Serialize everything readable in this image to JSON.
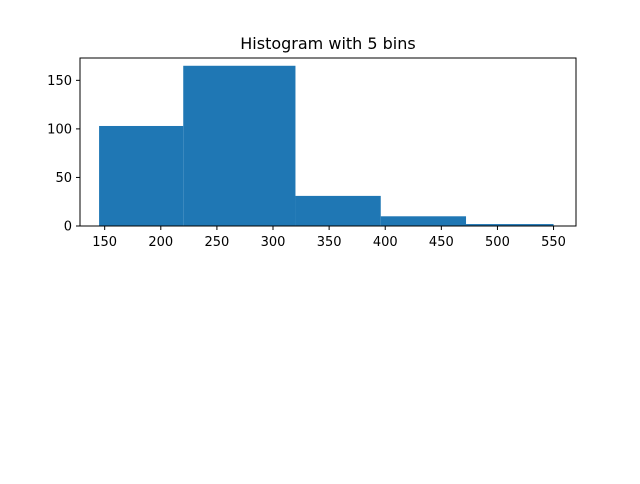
{
  "chart_data": {
    "type": "bar",
    "title": "Histogram with 5 bins",
    "xlabel": "",
    "ylabel": "",
    "bins": [
      {
        "start": 145,
        "end": 220,
        "count": 103
      },
      {
        "start": 220,
        "end": 320,
        "count": 165
      },
      {
        "start": 320,
        "end": 396,
        "count": 31
      },
      {
        "start": 396,
        "end": 472,
        "count": 10
      },
      {
        "start": 472,
        "end": 550,
        "count": 2
      }
    ],
    "xlim": [
      128,
      570
    ],
    "ylim": [
      0,
      173
    ],
    "x_ticks": [
      150,
      200,
      250,
      300,
      350,
      400,
      450,
      500,
      550
    ],
    "y_ticks": [
      0,
      50,
      100,
      150
    ],
    "bar_color": "#1f77b4",
    "grid": false
  }
}
